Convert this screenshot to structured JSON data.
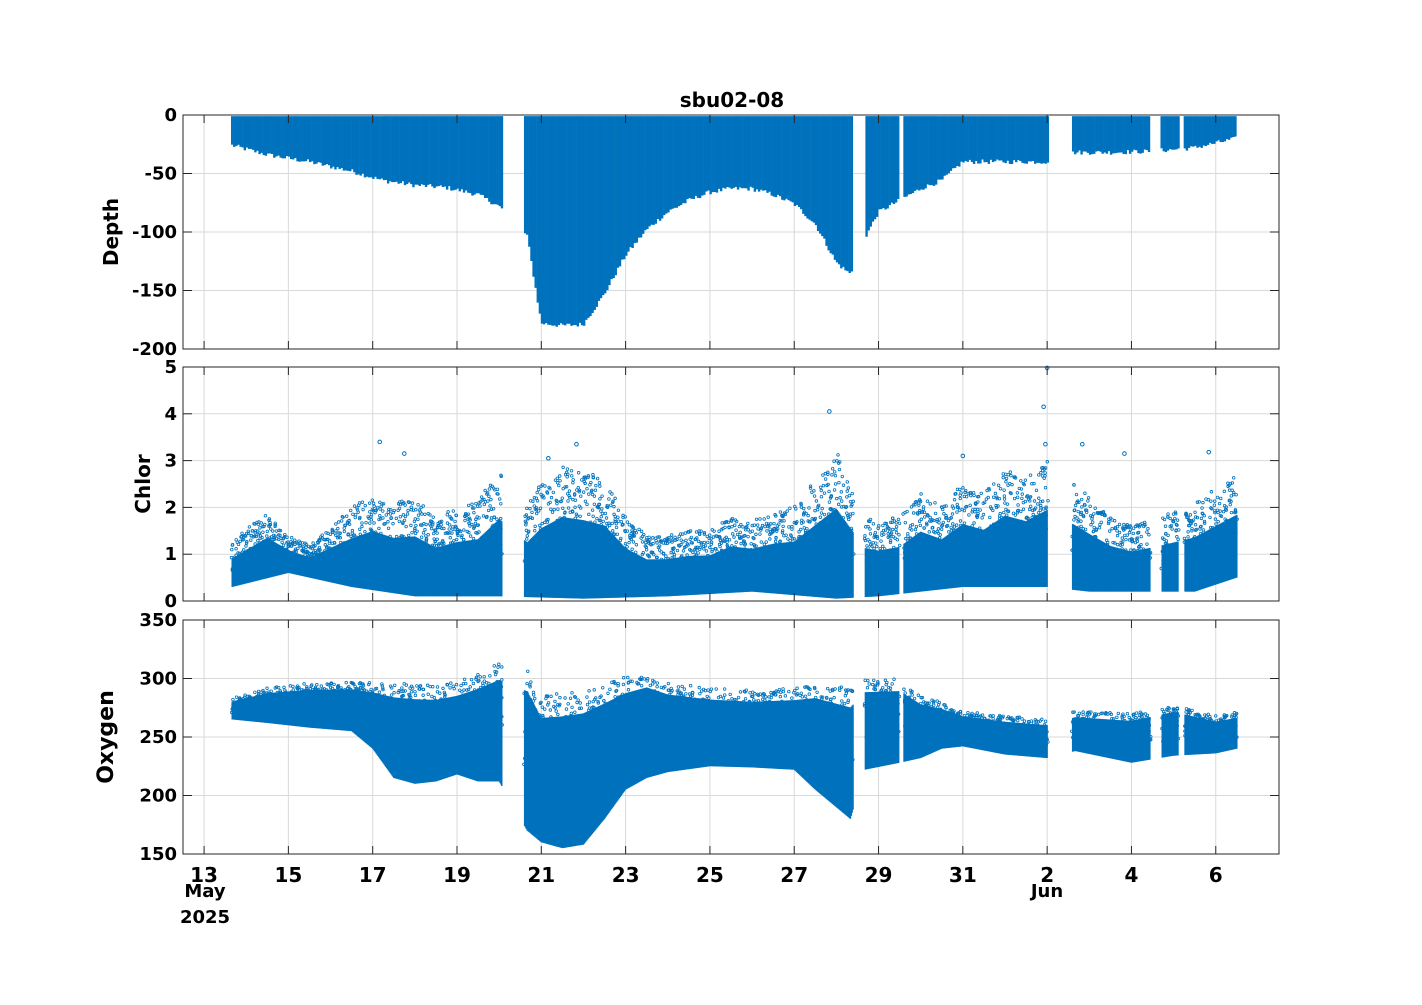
{
  "figure": {
    "title": "sbu02-08",
    "x_tick_labels": [
      "13",
      "15",
      "17",
      "19",
      "21",
      "23",
      "25",
      "27",
      "29",
      "31",
      "2",
      "4",
      "6"
    ],
    "x_sublabels": {
      "month_may": "May",
      "year": "2025",
      "month_jun": "Jun"
    },
    "series_color": "#0072BD"
  },
  "chart_data": [
    {
      "type": "scatter",
      "title": "sbu02-08",
      "ylabel": "Depth",
      "xlabel": "",
      "x_range": [
        "2025-05-12 12:00",
        "2025-06-07 12:00"
      ],
      "ylim": [
        -200,
        0
      ],
      "yticks": [
        0,
        -50,
        -100,
        -150,
        -200
      ],
      "grid": true,
      "description_of_series": "depth profiles (yo) of the glider, min depth near surface, max depth envelope varies",
      "max_depth_envelope": {
        "x": [
          "2025-05-13 16:00",
          "2025-05-14 12:00",
          "2025-05-15 12:00",
          "2025-05-16 12:00",
          "2025-05-17 06:00",
          "2025-05-18 00:00",
          "2025-05-18 18:00",
          "2025-05-19 12:00",
          "2025-05-20 00:00",
          "2025-05-20 16:00",
          "2025-05-21 00:00",
          "2025-05-21 12:00",
          "2025-05-22 00:00",
          "2025-05-22 12:00",
          "2025-05-23 00:00",
          "2025-05-23 12:00",
          "2025-05-24 00:00",
          "2025-05-24 12:00",
          "2025-05-25 00:00",
          "2025-05-25 12:00",
          "2025-05-26 00:00",
          "2025-05-26 12:00",
          "2025-05-27 00:00",
          "2025-05-27 12:00",
          "2025-05-28 00:00",
          "2025-05-28 08:00",
          "2025-05-28 16:00",
          "2025-05-29 00:00",
          "2025-05-29 12:00",
          "2025-05-30 00:00",
          "2025-05-30 12:00",
          "2025-05-31 00:00",
          "2025-05-31 12:00",
          "2025-06-01 00:00",
          "2025-06-02 00:00",
          "2025-06-02 16:00",
          "2025-06-03 12:00",
          "2025-06-04 12:00",
          "2025-06-05 12:00",
          "2025-06-06 12:00"
        ],
        "y": [
          -28,
          -36,
          -42,
          -50,
          -58,
          -62,
          -64,
          -70,
          -80,
          -105,
          -180,
          -182,
          -181,
          -155,
          -122,
          -100,
          -85,
          -75,
          -68,
          -65,
          -65,
          -70,
          -78,
          -95,
          -128,
          -138,
          -108,
          -85,
          -75,
          -65,
          -58,
          -42,
          -42,
          -42,
          -42,
          -34,
          -34,
          -33,
          -30,
          -22
        ]
      },
      "gaps": [
        [
          "2025-05-20 02:00",
          "2025-05-20 14:00"
        ],
        [
          "2025-05-28 10:00",
          "2025-05-28 16:00"
        ],
        [
          "2025-05-29 12:00",
          "2025-05-29 14:00"
        ],
        [
          "2025-06-02 00:30",
          "2025-06-02 14:00"
        ],
        [
          "2025-06-04 11:00",
          "2025-06-04 17:00"
        ],
        [
          "2025-06-05 03:00",
          "2025-06-05 06:00"
        ]
      ]
    },
    {
      "type": "scatter",
      "ylabel": "Chlor",
      "xlabel": "",
      "ylim": [
        0,
        5
      ],
      "yticks": [
        0,
        1,
        2,
        3,
        4,
        5
      ],
      "grid": true,
      "upper_envelope": {
        "x": [
          "2025-05-13 16:00",
          "2025-05-14 12:00",
          "2025-05-15 00:00",
          "2025-05-15 12:00",
          "2025-05-16 00:00",
          "2025-05-16 12:00",
          "2025-05-17 00:00",
          "2025-05-17 12:00",
          "2025-05-18 00:00",
          "2025-05-18 12:00",
          "2025-05-19 00:00",
          "2025-05-19 12:00",
          "2025-05-20 00:00",
          "2025-05-20 16:00",
          "2025-05-21 00:00",
          "2025-05-21 12:00",
          "2025-05-22 00:00",
          "2025-05-22 12:00",
          "2025-05-23 00:00",
          "2025-05-23 12:00",
          "2025-05-24 00:00",
          "2025-05-24 12:00",
          "2025-05-25 00:00",
          "2025-05-25 12:00",
          "2025-05-26 00:00",
          "2025-05-26 12:00",
          "2025-05-27 00:00",
          "2025-05-27 12:00",
          "2025-05-28 00:00",
          "2025-05-28 16:00",
          "2025-05-29 00:00",
          "2025-05-29 12:00",
          "2025-05-30 00:00",
          "2025-05-30 12:00",
          "2025-05-31 00:00",
          "2025-05-31 12:00",
          "2025-06-01 00:00",
          "2025-06-01 12:00",
          "2025-06-02 00:00",
          "2025-06-02 16:00",
          "2025-06-03 12:00",
          "2025-06-04 00:00",
          "2025-06-04 16:00",
          "2025-06-05 12:00",
          "2025-06-06 12:00"
        ],
        "y": [
          1.3,
          1.9,
          1.4,
          1.2,
          1.6,
          2.0,
          2.3,
          2.1,
          2.2,
          1.8,
          2.0,
          2.1,
          2.8,
          2.0,
          2.5,
          2.9,
          2.8,
          2.6,
          1.8,
          1.4,
          1.4,
          1.5,
          1.5,
          1.8,
          1.7,
          1.9,
          2.0,
          2.6,
          3.2,
          1.8,
          1.7,
          1.8,
          2.3,
          2.0,
          2.5,
          2.3,
          2.8,
          2.6,
          3.0,
          2.5,
          1.8,
          1.6,
          1.8,
          2.1,
          2.7
        ]
      },
      "lower_envelope": {
        "x": [
          "2025-05-13 16:00",
          "2025-05-15 00:00",
          "2025-05-16 12:00",
          "2025-05-18 00:00",
          "2025-05-20 00:00",
          "2025-05-22 00:00",
          "2025-05-24 00:00",
          "2025-05-26 00:00",
          "2025-05-28 00:00",
          "2025-05-29 00:00",
          "2025-05-30 00:00",
          "2025-05-31 00:00",
          "2025-06-02 00:00",
          "2025-06-03 00:00",
          "2025-06-04 00:00",
          "2025-06-05 12:00",
          "2025-06-06 12:00"
        ],
        "y": [
          0.3,
          0.6,
          0.3,
          0.1,
          0.1,
          0.05,
          0.1,
          0.2,
          0.05,
          0.1,
          0.2,
          0.3,
          0.3,
          0.2,
          0.2,
          0.2,
          0.5
        ]
      },
      "outliers": [
        {
          "x": "2025-05-17 04:00",
          "y": 3.4
        },
        {
          "x": "2025-05-17 18:00",
          "y": 3.15
        },
        {
          "x": "2025-05-21 04:00",
          "y": 3.05
        },
        {
          "x": "2025-05-21 20:00",
          "y": 3.35
        },
        {
          "x": "2025-05-27 20:00",
          "y": 4.05
        },
        {
          "x": "2025-05-31 00:00",
          "y": 3.1
        },
        {
          "x": "2025-06-02 00:00",
          "y": 4.98
        },
        {
          "x": "2025-06-01 22:00",
          "y": 4.15
        },
        {
          "x": "2025-06-01 23:00",
          "y": 3.35
        },
        {
          "x": "2025-06-02 20:00",
          "y": 3.35
        },
        {
          "x": "2025-06-03 20:00",
          "y": 3.15
        },
        {
          "x": "2025-06-05 20:00",
          "y": 3.18
        }
      ]
    },
    {
      "type": "scatter",
      "ylabel": "Oxygen",
      "xlabel": "",
      "ylim": [
        150,
        350
      ],
      "yticks": [
        150,
        200,
        250,
        300,
        350
      ],
      "grid": true,
      "upper_envelope": {
        "x": [
          "2025-05-13 16:00",
          "2025-05-14 12:00",
          "2025-05-15 12:00",
          "2025-05-16 12:00",
          "2025-05-17 12:00",
          "2025-05-18 12:00",
          "2025-05-19 00:00",
          "2025-05-19 12:00",
          "2025-05-20 00:00",
          "2025-05-20 16:00",
          "2025-05-21 00:00",
          "2025-05-22 00:00",
          "2025-05-23 00:00",
          "2025-05-23 12:00",
          "2025-05-24 00:00",
          "2025-05-25 00:00",
          "2025-05-26 00:00",
          "2025-05-27 00:00",
          "2025-05-27 12:00",
          "2025-05-28 08:00",
          "2025-05-28 16:00",
          "2025-05-29 12:00",
          "2025-05-30 00:00",
          "2025-05-30 12:00",
          "2025-05-31 00:00",
          "2025-06-01 00:00",
          "2025-06-02 00:00",
          "2025-06-02 16:00",
          "2025-06-04 00:00",
          "2025-06-05 00:00",
          "2025-06-06 00:00",
          "2025-06-06 12:00"
        ],
        "y": [
          283,
          292,
          296,
          297,
          296,
          294,
          297,
          305,
          314,
          310,
          285,
          290,
          302,
          306,
          298,
          292,
          290,
          292,
          297,
          292,
          300,
          300,
          286,
          280,
          272,
          268,
          265,
          272,
          270,
          278,
          268,
          271
        ]
      },
      "lower_envelope": {
        "x": [
          "2025-05-13 16:00",
          "2025-05-14 12:00",
          "2025-05-15 12:00",
          "2025-05-16 12:00",
          "2025-05-17 00:00",
          "2025-05-17 12:00",
          "2025-05-18 00:00",
          "2025-05-18 12:00",
          "2025-05-19 00:00",
          "2025-05-19 12:00",
          "2025-05-20 00:00",
          "2025-05-20 16:00",
          "2025-05-21 00:00",
          "2025-05-21 12:00",
          "2025-05-22 00:00",
          "2025-05-22 12:00",
          "2025-05-23 00:00",
          "2025-05-23 12:00",
          "2025-05-24 00:00",
          "2025-05-25 00:00",
          "2025-05-26 00:00",
          "2025-05-27 00:00",
          "2025-05-27 12:00",
          "2025-05-28 08:00",
          "2025-05-28 16:00",
          "2025-05-29 12:00",
          "2025-05-30 00:00",
          "2025-05-30 12:00",
          "2025-05-31 00:00",
          "2025-06-01 00:00",
          "2025-06-02 00:00",
          "2025-06-02 16:00",
          "2025-06-04 00:00",
          "2025-06-05 00:00",
          "2025-06-06 00:00",
          "2025-06-06 12:00"
        ],
        "y": [
          265,
          262,
          258,
          255,
          240,
          215,
          210,
          212,
          218,
          212,
          212,
          170,
          160,
          155,
          158,
          180,
          205,
          215,
          220,
          225,
          224,
          222,
          205,
          180,
          222,
          228,
          232,
          240,
          242,
          235,
          232,
          238,
          228,
          234,
          236,
          240
        ]
      }
    }
  ]
}
